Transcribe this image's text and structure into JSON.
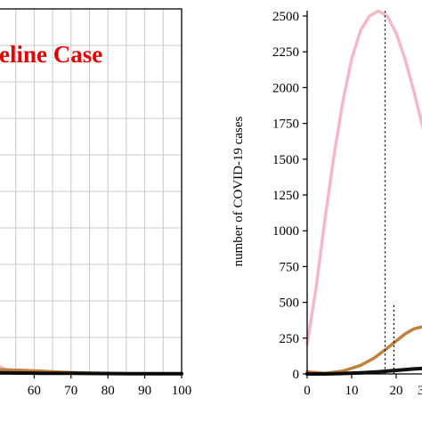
{
  "chart_data": [
    {
      "type": "line",
      "title": "Baseline Case",
      "title_visible": "eline Case",
      "title_color": "#e60000",
      "grid": true,
      "xlim": [
        0,
        100
      ],
      "x_ticks": [
        60,
        70,
        80,
        90,
        100
      ],
      "x_tick_labels": [
        "60",
        "70",
        "80",
        "90",
        "100"
      ],
      "series": [
        {
          "color": "#f7b8c6",
          "x": [
            50,
            51,
            52,
            53,
            54,
            55
          ],
          "y": [
            60,
            45,
            34,
            25,
            18,
            13
          ]
        },
        {
          "color": "#c0813f",
          "x": [
            50,
            54,
            58,
            62,
            66,
            70,
            74,
            78,
            82,
            86,
            90,
            95,
            100
          ],
          "y": [
            29,
            27,
            24,
            19,
            14,
            10,
            7,
            4,
            2.5,
            1.5,
            1,
            0.5,
            0.5
          ]
        },
        {
          "color": "#111111",
          "x": [
            50,
            54,
            58,
            62,
            66,
            70,
            74,
            78,
            82,
            86,
            90,
            95,
            100
          ],
          "y": [
            8,
            7,
            6,
            5,
            4.5,
            4,
            3.5,
            3,
            2.5,
            2,
            1.5,
            1.5,
            1
          ]
        }
      ]
    },
    {
      "type": "line",
      "ylabel": "number of COVID-19 cases",
      "ylim": [
        0,
        2500
      ],
      "y_ticks": [
        0,
        250,
        500,
        750,
        1000,
        1250,
        1500,
        1750,
        2000,
        2250,
        2500
      ],
      "y_tick_labels": [
        "0",
        "250",
        "500",
        "750",
        "1000",
        "1250",
        "1500",
        "1750",
        "2000",
        "2250",
        "2500"
      ],
      "xlim": [
        0,
        30
      ],
      "x_ticks": [
        0,
        10,
        20
      ],
      "x_tick_labels": [
        "0",
        "10",
        "20"
      ],
      "x_tick_labels_cut": [
        "3"
      ],
      "grid": false,
      "series": [
        {
          "color": "#f7b8c6",
          "x": [
            0,
            2,
            4,
            6,
            8,
            10,
            12,
            14,
            16,
            18,
            20,
            22,
            24,
            26,
            27
          ],
          "y": [
            210,
            600,
            1080,
            1520,
            1900,
            2200,
            2400,
            2500,
            2535,
            2500,
            2380,
            2200,
            1970,
            1720,
            1610
          ]
        },
        {
          "color": "#c0813f",
          "x": [
            0,
            4,
            8,
            12,
            15,
            18,
            20,
            22,
            24,
            26,
            27
          ],
          "y": [
            15,
            5,
            20,
            60,
            110,
            180,
            230,
            280,
            315,
            330,
            325
          ]
        },
        {
          "color": "#111111",
          "x": [
            0,
            4,
            8,
            12,
            16,
            20,
            24,
            27
          ],
          "y": [
            0,
            0,
            3,
            8,
            15,
            25,
            35,
            40
          ]
        }
      ],
      "peak_markers": [
        {
          "x": 17.5,
          "y": 2535
        },
        {
          "x": 19.5,
          "y": 480
        },
        {
          "x": 26,
          "y": 330
        }
      ]
    }
  ]
}
